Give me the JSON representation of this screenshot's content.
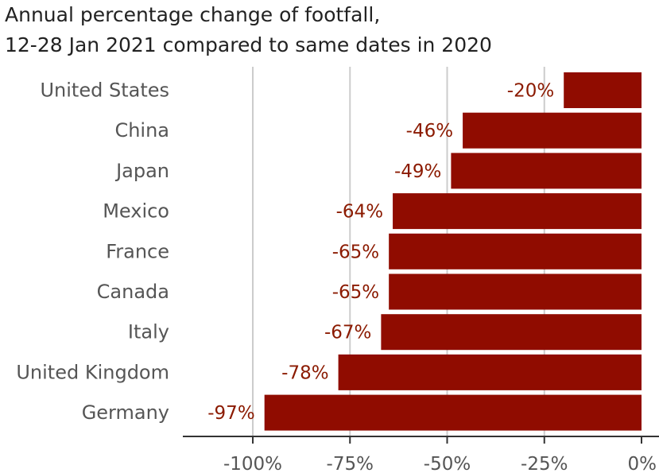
{
  "chart_data": {
    "type": "bar",
    "orientation": "horizontal",
    "title_lines": [
      "Annual percentage change of footfall,",
      "12-28 Jan 2021 compared to same dates in 2020"
    ],
    "categories": [
      "United States",
      "China",
      "Japan",
      "Mexico",
      "France",
      "Canada",
      "Italy",
      "United Kingdom",
      "Germany"
    ],
    "values": [
      -20,
      -46,
      -49,
      -64,
      -65,
      -65,
      -67,
      -78,
      -97
    ],
    "data_labels": [
      "-20%",
      "-46%",
      "-49%",
      "-64%",
      "-65%",
      "-65%",
      "-67%",
      "-78%",
      "-97%"
    ],
    "xlim": [
      -118,
      0
    ],
    "x_ticks": [
      -100,
      -75,
      -50,
      -25,
      0
    ],
    "x_tick_labels": [
      "-100%",
      "-75%",
      "-50%",
      "-25%",
      "0%"
    ],
    "grid": true,
    "legend": "none",
    "colors": {
      "bar": "#900c00",
      "label": "#8b1a00",
      "grid": "#cccccc",
      "axis": "#333333"
    }
  }
}
